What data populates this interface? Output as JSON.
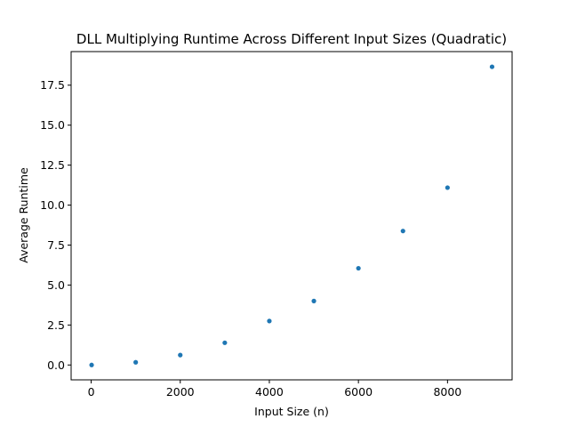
{
  "chart_data": {
    "type": "scatter",
    "title": "DLL Multiplying Runtime Across Different Input Sizes (Quadratic)",
    "xlabel": "Input Size (n)",
    "ylabel": "Average Runtime",
    "xlim": [
      -450,
      9450
    ],
    "ylim": [
      -0.93,
      19.6
    ],
    "xticks": [
      0,
      2000,
      4000,
      6000,
      8000
    ],
    "xtick_labels": [
      "0",
      "2000",
      "4000",
      "6000",
      "8000"
    ],
    "yticks": [
      0,
      2.5,
      5,
      7.5,
      10,
      12.5,
      15,
      17.5
    ],
    "ytick_labels": [
      "0.0",
      "2.5",
      "5.0",
      "7.5",
      "10.0",
      "12.5",
      "15.0",
      "17.5"
    ],
    "grid": false,
    "legend": "none",
    "marker_color": "#1f77b4",
    "x": [
      10,
      1000,
      2000,
      3000,
      4000,
      5000,
      6000,
      7000,
      8000,
      9000
    ],
    "y": [
      0.0,
      0.17,
      0.62,
      1.39,
      2.75,
      4.0,
      6.05,
      8.38,
      11.09,
      18.65
    ]
  }
}
